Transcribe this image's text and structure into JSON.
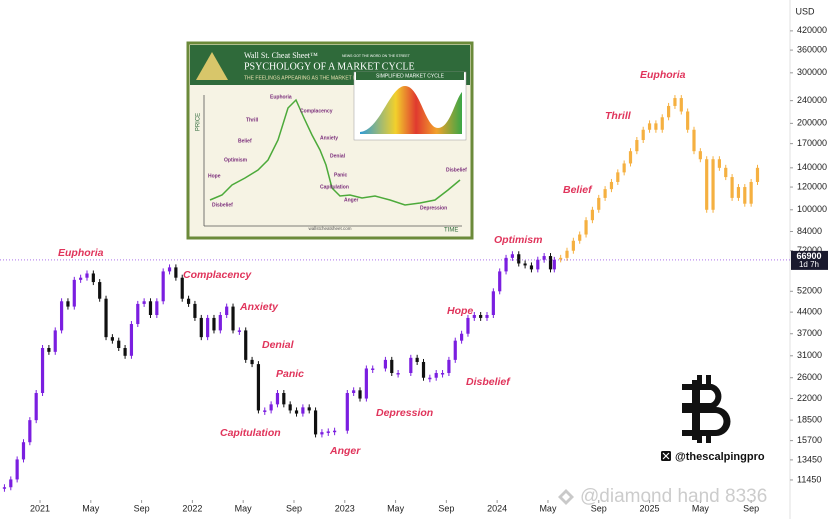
{
  "chart_data": {
    "type": "candlestick",
    "log_scale": true,
    "currency": "USD",
    "ylim": [
      9750,
      538000
    ],
    "yticks": [
      420000,
      360000,
      300000,
      240000,
      200000,
      170000,
      140000,
      120000,
      100000,
      84000,
      72000,
      52000,
      44000,
      37000,
      31000,
      26000,
      22000,
      18500,
      15700,
      13450,
      11450
    ],
    "xlim": [
      -3.15,
      59.06
    ],
    "xticks": [
      {
        "value": 0,
        "label": "2021"
      },
      {
        "value": 4,
        "label": "May"
      },
      {
        "value": 8,
        "label": "Sep"
      },
      {
        "value": 12,
        "label": "2022"
      },
      {
        "value": 16,
        "label": "May"
      },
      {
        "value": 20,
        "label": "Sep"
      },
      {
        "value": 24,
        "label": "2023"
      },
      {
        "value": 28,
        "label": "May"
      },
      {
        "value": 32,
        "label": "Sep"
      },
      {
        "value": 36,
        "label": "2024"
      },
      {
        "value": 40,
        "label": "May"
      },
      {
        "value": 44,
        "label": "Sep"
      },
      {
        "value": 48,
        "label": "2025"
      },
      {
        "value": 52,
        "label": "May"
      },
      {
        "value": 56,
        "label": "Sep"
      }
    ],
    "series": [
      {
        "color": "#7b1fe0",
        "down_color": "#111111",
        "x": [
          -2.8,
          -2.3,
          -1.8,
          -1.3,
          -0.8,
          -0.3,
          0.2,
          0.7,
          1.2,
          1.7,
          2.2,
          2.7,
          3.2,
          3.7,
          4.2,
          4.7,
          5.2,
          5.7,
          6.2,
          6.7,
          7.2,
          7.7,
          8.2,
          8.7,
          9.2,
          9.7,
          10.2,
          10.7,
          11.2,
          11.7,
          12.2,
          12.7,
          13.2,
          13.7,
          14.2,
          14.7,
          15.2,
          15.7,
          16.2,
          16.7,
          17.2,
          17.7,
          18.2,
          18.7,
          19.2,
          19.7,
          20.2,
          20.7,
          21.2,
          21.7,
          22.2,
          22.7,
          23.2,
          24.2,
          24.7,
          25.2,
          25.7,
          26.2,
          27.2,
          27.7,
          28.2,
          29.2,
          29.7,
          30.2,
          30.7,
          31.2,
          31.7,
          32.2,
          32.7,
          33.2,
          33.7,
          34.2,
          34.7,
          35.2,
          35.7,
          36.2,
          36.7,
          37.2,
          37.7,
          38.2,
          38.7,
          39.2,
          39.7,
          40.2,
          40.5
        ],
        "values": [
          10800,
          11500,
          13500,
          15500,
          18500,
          23000,
          33000,
          32000,
          38000,
          48000,
          46000,
          57000,
          58000,
          60000,
          56000,
          49000,
          36000,
          35000,
          33000,
          31000,
          40000,
          47000,
          48000,
          43000,
          48000,
          61000,
          63000,
          58000,
          49000,
          47000,
          42000,
          36000,
          42000,
          38000,
          43000,
          46000,
          38000,
          38000,
          30000,
          29000,
          20000,
          20000,
          21000,
          23000,
          21000,
          20000,
          19500,
          20500,
          20000,
          16500,
          16800,
          16900,
          17000,
          23000,
          23500,
          22000,
          28000,
          28000,
          30000,
          27000,
          27000,
          30500,
          29500,
          26000,
          26000,
          27000,
          27000,
          30000,
          35000,
          37000,
          42000,
          43000,
          42000,
          43000,
          52000,
          61000,
          68000,
          70000,
          65000,
          64000,
          62000,
          67000,
          69000,
          62000,
          66900
        ]
      },
      {
        "color": "#f5b041",
        "down_color": "#f5b041",
        "x": [
          41,
          41.5,
          42,
          42.5,
          43,
          43.5,
          44,
          44.5,
          45,
          45.5,
          46,
          46.5,
          47,
          47.5,
          48,
          48.5,
          49,
          49.5,
          50,
          50.5,
          51,
          51.5,
          52,
          52.5,
          53,
          53.5,
          54,
          54.5,
          55,
          55.5,
          56,
          56.5
        ],
        "values": [
          68000,
          72000,
          78000,
          82000,
          92000,
          100000,
          110000,
          118000,
          125000,
          135000,
          145000,
          160000,
          175000,
          190000,
          200000,
          190000,
          210000,
          230000,
          245000,
          220000,
          190000,
          160000,
          150000,
          100000,
          150000,
          140000,
          130000,
          110000,
          120000,
          105000,
          125000,
          140000
        ]
      }
    ],
    "last_price": 66900,
    "countdown": "1d 7h",
    "annotations": [
      "Euphoria",
      "Complacency",
      "Anxiety",
      "Denial",
      "Panic",
      "Capitulation",
      "Anger",
      "Depression",
      "Hope",
      "Disbelief",
      "Optimism",
      "Belief",
      "Thrill",
      "Euphoria"
    ],
    "inset": {
      "brand": "Wall St. Cheat Sheet™",
      "tagline": "NEWS GOT THE WORD ON THE STREET",
      "title": "PSYCHOLOGY OF A MARKET CYCLE",
      "subtitle": "THE FEELINGS APPEARING AS THE MARKET FLUCTUATES",
      "panel_title": "SIMPLIFIED MARKET CYCLE",
      "y_label": "PRICE",
      "x_label": "TIME",
      "url": "wallstcheatsheet.com",
      "stages": [
        "Disbelief",
        "Hope",
        "Optimism",
        "Belief",
        "Thrill",
        "Euphoria",
        "Complacency",
        "Anxiety",
        "Denial",
        "Panic",
        "Capitulation",
        "Anger",
        "Depression",
        "Disbelief"
      ]
    },
    "handle": "@thescalpingpro",
    "watermark": "@diamond hand 8336"
  }
}
